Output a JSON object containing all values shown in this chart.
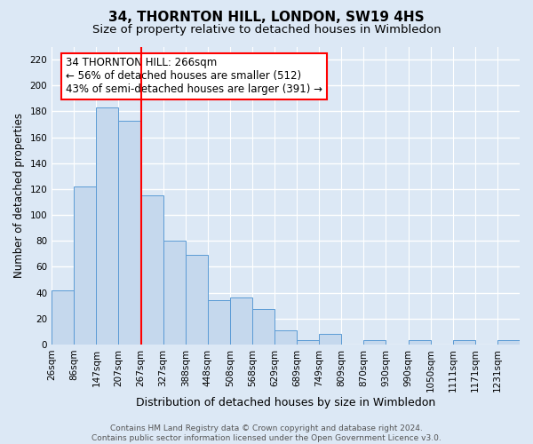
{
  "title": "34, THORNTON HILL, LONDON, SW19 4HS",
  "subtitle": "Size of property relative to detached houses in Wimbledon",
  "xlabel": "Distribution of detached houses by size in Wimbledon",
  "ylabel": "Number of detached properties",
  "bin_labels": [
    "26sqm",
    "86sqm",
    "147sqm",
    "207sqm",
    "267sqm",
    "327sqm",
    "388sqm",
    "448sqm",
    "508sqm",
    "568sqm",
    "629sqm",
    "689sqm",
    "749sqm",
    "809sqm",
    "870sqm",
    "930sqm",
    "990sqm",
    "1050sqm",
    "1111sqm",
    "1171sqm",
    "1231sqm"
  ],
  "bar_heights": [
    42,
    122,
    183,
    173,
    115,
    80,
    69,
    34,
    36,
    27,
    11,
    3,
    8,
    0,
    3,
    0,
    3,
    0,
    3,
    0,
    3
  ],
  "bar_color": "#c5d8ed",
  "bar_edge_color": "#5b9bd5",
  "property_line_index": 4,
  "property_line_color": "red",
  "annotation_text": "34 THORNTON HILL: 266sqm\n← 56% of detached houses are smaller (512)\n43% of semi-detached houses are larger (391) →",
  "annotation_box_color": "white",
  "annotation_box_edge_color": "red",
  "ylim": [
    0,
    230
  ],
  "yticks": [
    0,
    20,
    40,
    60,
    80,
    100,
    120,
    140,
    160,
    180,
    200,
    220
  ],
  "background_color": "#dce8f5",
  "grid_color": "white",
  "footer_text": "Contains HM Land Registry data © Crown copyright and database right 2024.\nContains public sector information licensed under the Open Government Licence v3.0.",
  "title_fontsize": 11,
  "subtitle_fontsize": 9.5,
  "xlabel_fontsize": 9,
  "ylabel_fontsize": 8.5,
  "tick_fontsize": 7.5,
  "annotation_fontsize": 8.5,
  "footer_fontsize": 6.5
}
